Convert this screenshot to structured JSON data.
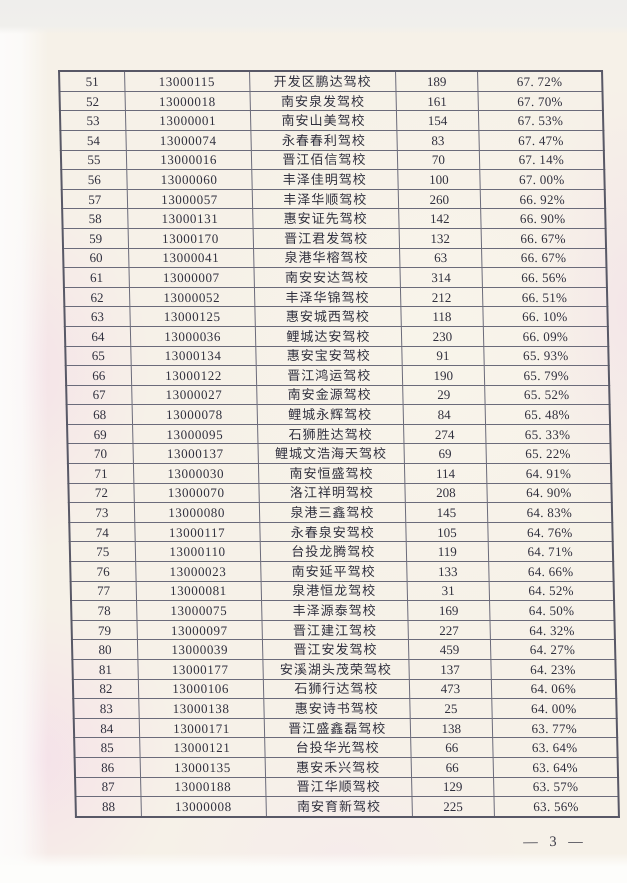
{
  "page": {
    "page_number_label": "— 3 —"
  },
  "colors": {
    "paper": "#f6f1e8",
    "pink_tint": "#f3cbe8",
    "table_border": "#6b6b7a",
    "ink": "#30303e"
  },
  "table": {
    "column_names": [
      "rank",
      "code",
      "school_name",
      "count",
      "pass_rate"
    ],
    "rows": [
      [
        "51",
        "13000115",
        "开发区鹏达驾校",
        "189",
        "67. 72%"
      ],
      [
        "52",
        "13000018",
        "南安泉发驾校",
        "161",
        "67. 70%"
      ],
      [
        "53",
        "13000001",
        "南安山美驾校",
        "154",
        "67. 53%"
      ],
      [
        "54",
        "13000074",
        "永春春利驾校",
        "83",
        "67. 47%"
      ],
      [
        "55",
        "13000016",
        "晋江佰信驾校",
        "70",
        "67. 14%"
      ],
      [
        "56",
        "13000060",
        "丰泽佳明驾校",
        "100",
        "67. 00%"
      ],
      [
        "57",
        "13000057",
        "丰泽华顺驾校",
        "260",
        "66. 92%"
      ],
      [
        "58",
        "13000131",
        "惠安证先驾校",
        "142",
        "66. 90%"
      ],
      [
        "59",
        "13000170",
        "晋江君发驾校",
        "132",
        "66. 67%"
      ],
      [
        "60",
        "13000041",
        "泉港华榕驾校",
        "63",
        "66. 67%"
      ],
      [
        "61",
        "13000007",
        "南安安达驾校",
        "314",
        "66. 56%"
      ],
      [
        "62",
        "13000052",
        "丰泽华锦驾校",
        "212",
        "66. 51%"
      ],
      [
        "63",
        "13000125",
        "惠安城西驾校",
        "118",
        "66. 10%"
      ],
      [
        "64",
        "13000036",
        "鲤城达安驾校",
        "230",
        "66. 09%"
      ],
      [
        "65",
        "13000134",
        "惠安宝安驾校",
        "91",
        "65. 93%"
      ],
      [
        "66",
        "13000122",
        "晋江鸿运驾校",
        "190",
        "65. 79%"
      ],
      [
        "67",
        "13000027",
        "南安金源驾校",
        "29",
        "65. 52%"
      ],
      [
        "68",
        "13000078",
        "鲤城永辉驾校",
        "84",
        "65. 48%"
      ],
      [
        "69",
        "13000095",
        "石狮胜达驾校",
        "274",
        "65. 33%"
      ],
      [
        "70",
        "13000137",
        "鲤城文浩海天驾校",
        "69",
        "65. 22%"
      ],
      [
        "71",
        "13000030",
        "南安恒盛驾校",
        "114",
        "64. 91%"
      ],
      [
        "72",
        "13000070",
        "洛江祥明驾校",
        "208",
        "64. 90%"
      ],
      [
        "73",
        "13000080",
        "泉港三鑫驾校",
        "145",
        "64. 83%"
      ],
      [
        "74",
        "13000117",
        "永春泉安驾校",
        "105",
        "64. 76%"
      ],
      [
        "75",
        "13000110",
        "台投龙腾驾校",
        "119",
        "64. 71%"
      ],
      [
        "76",
        "13000023",
        "南安延平驾校",
        "133",
        "64. 66%"
      ],
      [
        "77",
        "13000081",
        "泉港恒龙驾校",
        "31",
        "64. 52%"
      ],
      [
        "78",
        "13000075",
        "丰泽源泰驾校",
        "169",
        "64. 50%"
      ],
      [
        "79",
        "13000097",
        "晋江建江驾校",
        "227",
        "64. 32%"
      ],
      [
        "80",
        "13000039",
        "晋江安发驾校",
        "459",
        "64. 27%"
      ],
      [
        "81",
        "13000177",
        "安溪湖头茂荣驾校",
        "137",
        "64. 23%"
      ],
      [
        "82",
        "13000106",
        "石狮行达驾校",
        "473",
        "64. 06%"
      ],
      [
        "83",
        "13000138",
        "惠安诗书驾校",
        "25",
        "64. 00%"
      ],
      [
        "84",
        "13000171",
        "晋江盛鑫磊驾校",
        "138",
        "63. 77%"
      ],
      [
        "85",
        "13000121",
        "台投华光驾校",
        "66",
        "63. 64%"
      ],
      [
        "86",
        "13000135",
        "惠安禾兴驾校",
        "66",
        "63. 64%"
      ],
      [
        "87",
        "13000188",
        "晋江华顺驾校",
        "129",
        "63. 57%"
      ],
      [
        "88",
        "13000008",
        "南安育新驾校",
        "225",
        "63. 56%"
      ]
    ]
  }
}
